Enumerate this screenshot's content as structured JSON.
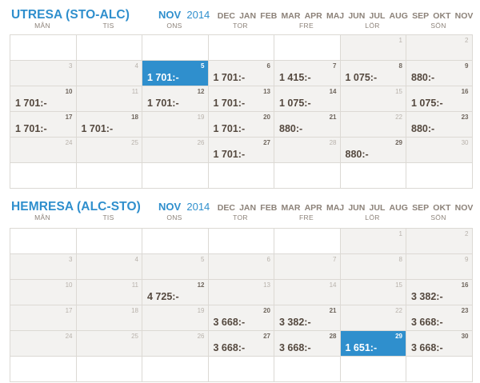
{
  "months": [
    "DEC",
    "JAN",
    "FEB",
    "MAR",
    "APR",
    "MAJ",
    "JUN",
    "JUL",
    "AUG",
    "SEP",
    "OKT",
    "NOV"
  ],
  "weekdays": [
    "MÅN",
    "TIS",
    "ONS",
    "TOR",
    "FRE",
    "LÖR",
    "SÖN"
  ],
  "sections": [
    {
      "id": "utresa",
      "title": "UTRESA (STO-ALC)",
      "active_month": "NOV",
      "active_year": "2014",
      "days": [
        {
          "d": "",
          "p": ""
        },
        {
          "d": "",
          "p": ""
        },
        {
          "d": "",
          "p": ""
        },
        {
          "d": "",
          "p": ""
        },
        {
          "d": "",
          "p": ""
        },
        {
          "d": "1",
          "p": ""
        },
        {
          "d": "2",
          "p": ""
        },
        {
          "d": "3",
          "p": ""
        },
        {
          "d": "4",
          "p": ""
        },
        {
          "d": "5",
          "p": "1 701:-",
          "sel": true
        },
        {
          "d": "6",
          "p": "1 701:-"
        },
        {
          "d": "7",
          "p": "1 415:-"
        },
        {
          "d": "8",
          "p": "1 075:-"
        },
        {
          "d": "9",
          "p": "880:-"
        },
        {
          "d": "10",
          "p": "1 701:-"
        },
        {
          "d": "11",
          "p": ""
        },
        {
          "d": "12",
          "p": "1 701:-"
        },
        {
          "d": "13",
          "p": "1 701:-"
        },
        {
          "d": "14",
          "p": "1 075:-"
        },
        {
          "d": "15",
          "p": ""
        },
        {
          "d": "16",
          "p": "1 075:-"
        },
        {
          "d": "17",
          "p": "1 701:-"
        },
        {
          "d": "18",
          "p": "1 701:-"
        },
        {
          "d": "19",
          "p": ""
        },
        {
          "d": "20",
          "p": "1 701:-"
        },
        {
          "d": "21",
          "p": "880:-"
        },
        {
          "d": "22",
          "p": ""
        },
        {
          "d": "23",
          "p": "880:-"
        },
        {
          "d": "24",
          "p": ""
        },
        {
          "d": "25",
          "p": ""
        },
        {
          "d": "26",
          "p": ""
        },
        {
          "d": "27",
          "p": "1 701:-"
        },
        {
          "d": "28",
          "p": ""
        },
        {
          "d": "29",
          "p": "880:-"
        },
        {
          "d": "30",
          "p": ""
        },
        {
          "d": "",
          "p": ""
        },
        {
          "d": "",
          "p": ""
        },
        {
          "d": "",
          "p": ""
        },
        {
          "d": "",
          "p": ""
        },
        {
          "d": "",
          "p": ""
        },
        {
          "d": "",
          "p": ""
        },
        {
          "d": "",
          "p": ""
        }
      ]
    },
    {
      "id": "hemresa",
      "title": "HEMRESA (ALC-STO)",
      "active_month": "NOV",
      "active_year": "2014",
      "days": [
        {
          "d": "",
          "p": ""
        },
        {
          "d": "",
          "p": ""
        },
        {
          "d": "",
          "p": ""
        },
        {
          "d": "",
          "p": ""
        },
        {
          "d": "",
          "p": ""
        },
        {
          "d": "1",
          "p": ""
        },
        {
          "d": "2",
          "p": ""
        },
        {
          "d": "3",
          "p": ""
        },
        {
          "d": "4",
          "p": ""
        },
        {
          "d": "5",
          "p": ""
        },
        {
          "d": "6",
          "p": ""
        },
        {
          "d": "7",
          "p": ""
        },
        {
          "d": "8",
          "p": ""
        },
        {
          "d": "9",
          "p": ""
        },
        {
          "d": "10",
          "p": ""
        },
        {
          "d": "11",
          "p": ""
        },
        {
          "d": "12",
          "p": "4 725:-"
        },
        {
          "d": "13",
          "p": ""
        },
        {
          "d": "14",
          "p": ""
        },
        {
          "d": "15",
          "p": ""
        },
        {
          "d": "16",
          "p": "3 382:-"
        },
        {
          "d": "17",
          "p": ""
        },
        {
          "d": "18",
          "p": ""
        },
        {
          "d": "19",
          "p": ""
        },
        {
          "d": "20",
          "p": "3 668:-"
        },
        {
          "d": "21",
          "p": "3 382:-"
        },
        {
          "d": "22",
          "p": ""
        },
        {
          "d": "23",
          "p": "3 668:-"
        },
        {
          "d": "24",
          "p": ""
        },
        {
          "d": "25",
          "p": ""
        },
        {
          "d": "26",
          "p": ""
        },
        {
          "d": "27",
          "p": "3 668:-"
        },
        {
          "d": "28",
          "p": "3 668:-"
        },
        {
          "d": "29",
          "p": "1 651:-",
          "sel": true
        },
        {
          "d": "30",
          "p": "3 668:-"
        },
        {
          "d": "",
          "p": ""
        },
        {
          "d": "",
          "p": ""
        },
        {
          "d": "",
          "p": ""
        },
        {
          "d": "",
          "p": ""
        },
        {
          "d": "",
          "p": ""
        },
        {
          "d": "",
          "p": ""
        },
        {
          "d": "",
          "p": ""
        }
      ]
    }
  ],
  "colors": {
    "accent": "#2f8fcd",
    "text": "#54483e",
    "muted": "#8c8279",
    "cell_bg": "#f3f2f0",
    "border": "#dcd9d4"
  }
}
